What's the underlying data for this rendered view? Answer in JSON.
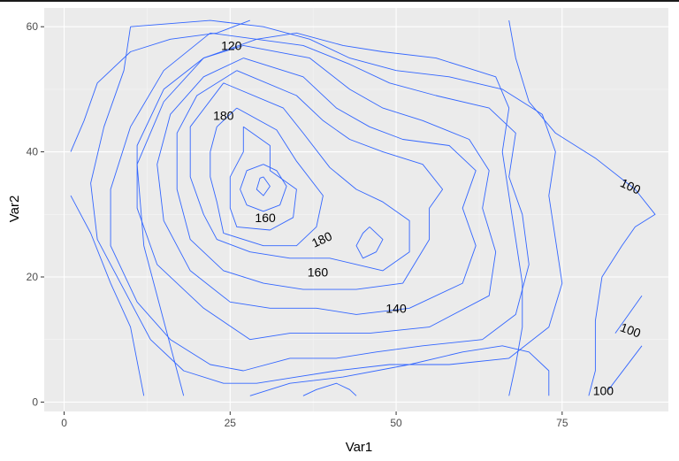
{
  "chart_data": {
    "type": "contour",
    "xlabel": "Var1",
    "ylabel": "Var2",
    "xlim": [
      -3,
      91
    ],
    "ylim": [
      -1.5,
      63
    ],
    "x_ticks": [
      0,
      25,
      50,
      75
    ],
    "y_ticks": [
      0,
      20,
      40,
      60
    ],
    "grid": true,
    "colors": {
      "panel": "#ebebeb",
      "grid_major": "#ffffff",
      "grid_minor": "#f5f5f5",
      "contour": "#3366ff",
      "tick": "#333333"
    },
    "contour_labels": [
      {
        "text": "120",
        "x": 25.2,
        "y": 57.0,
        "angle": 0
      },
      {
        "text": "180",
        "x": 24.0,
        "y": 45.8,
        "angle": 0
      },
      {
        "text": "160",
        "x": 30.3,
        "y": 29.5,
        "angle": 0
      },
      {
        "text": "180",
        "x": 38.8,
        "y": 26.0,
        "angle": -25
      },
      {
        "text": "160",
        "x": 38.2,
        "y": 20.8,
        "angle": 0
      },
      {
        "text": "140",
        "x": 50.0,
        "y": 15.0,
        "angle": 0
      },
      {
        "text": "100",
        "x": 85.3,
        "y": 34.5,
        "angle": 25
      },
      {
        "text": "100",
        "x": 85.3,
        "y": 11.5,
        "angle": 20
      },
      {
        "text": "100",
        "x": 81.2,
        "y": 1.8,
        "angle": 0
      }
    ],
    "contours": [
      [
        [
          30,
          36
        ],
        [
          31,
          34.5
        ],
        [
          30,
          33
        ],
        [
          29,
          34
        ],
        [
          29.5,
          35.8
        ],
        [
          30,
          36
        ]
      ],
      [
        [
          30,
          38
        ],
        [
          32,
          37
        ],
        [
          33.5,
          34.5
        ],
        [
          32.5,
          31.5
        ],
        [
          30,
          30.5
        ],
        [
          27.5,
          31.5
        ],
        [
          26.5,
          34
        ],
        [
          27.5,
          37
        ],
        [
          30,
          38
        ]
      ],
      [
        [
          27,
          44
        ],
        [
          31,
          41
        ],
        [
          31,
          37
        ],
        [
          35,
          34
        ],
        [
          34.5,
          29.5
        ],
        [
          31,
          27.5
        ],
        [
          26,
          28
        ],
        [
          25,
          31
        ],
        [
          25,
          36
        ],
        [
          27,
          40
        ],
        [
          27,
          44
        ]
      ],
      [
        [
          26,
          47
        ],
        [
          32,
          43.5
        ],
        [
          35,
          38.5
        ],
        [
          39,
          33
        ],
        [
          38,
          28
        ],
        [
          35,
          25
        ],
        [
          30,
          25
        ],
        [
          24,
          27
        ],
        [
          23,
          32
        ],
        [
          22,
          36
        ],
        [
          22,
          40
        ],
        [
          23,
          44
        ],
        [
          26,
          47
        ]
      ],
      [
        [
          46,
          28
        ],
        [
          48,
          26
        ],
        [
          47,
          24
        ],
        [
          45,
          23
        ],
        [
          44,
          25
        ],
        [
          45,
          27
        ],
        [
          46,
          28
        ]
      ],
      [
        [
          24,
          51
        ],
        [
          33,
          47
        ],
        [
          36,
          43
        ],
        [
          40,
          37.5
        ],
        [
          44,
          34
        ],
        [
          48,
          32
        ],
        [
          52,
          29
        ],
        [
          52,
          24
        ],
        [
          48,
          21
        ],
        [
          40,
          23
        ],
        [
          34,
          23
        ],
        [
          28,
          24
        ],
        [
          23,
          26
        ],
        [
          21,
          30
        ],
        [
          19,
          36
        ],
        [
          19,
          44
        ],
        [
          24,
          51
        ]
      ],
      [
        [
          26,
          53
        ],
        [
          35,
          49
        ],
        [
          39,
          45
        ],
        [
          43,
          42
        ],
        [
          48,
          40
        ],
        [
          54,
          38
        ],
        [
          57,
          34
        ],
        [
          55,
          31
        ],
        [
          55,
          26
        ],
        [
          51,
          19
        ],
        [
          44,
          18
        ],
        [
          36,
          18
        ],
        [
          30,
          19
        ],
        [
          24,
          21
        ],
        [
          19,
          26
        ],
        [
          17,
          34
        ],
        [
          17,
          43
        ],
        [
          20,
          49
        ],
        [
          26,
          53
        ]
      ],
      [
        [
          27,
          55
        ],
        [
          36,
          52
        ],
        [
          41,
          47
        ],
        [
          46,
          44
        ],
        [
          51,
          42
        ],
        [
          58,
          41
        ],
        [
          62,
          37
        ],
        [
          60,
          31
        ],
        [
          62,
          25
        ],
        [
          60,
          19
        ],
        [
          52,
          15
        ],
        [
          44,
          14
        ],
        [
          38,
          15
        ],
        [
          31,
          15
        ],
        [
          25,
          16
        ],
        [
          19,
          21
        ],
        [
          15,
          29
        ],
        [
          14,
          38
        ],
        [
          16,
          46
        ],
        [
          21,
          52
        ],
        [
          27,
          55
        ]
      ],
      [
        [
          27,
          57
        ],
        [
          37,
          55
        ],
        [
          43,
          50
        ],
        [
          48,
          47
        ],
        [
          54,
          45
        ],
        [
          61,
          42
        ],
        [
          64,
          37
        ],
        [
          63,
          31
        ],
        [
          65,
          24
        ],
        [
          64,
          17
        ],
        [
          55,
          12
        ],
        [
          46,
          11
        ],
        [
          40,
          11
        ],
        [
          34,
          11
        ],
        [
          28,
          10
        ],
        [
          21,
          15
        ],
        [
          14,
          22
        ],
        [
          11,
          31
        ],
        [
          11,
          41
        ],
        [
          15,
          50
        ],
        [
          21,
          55
        ],
        [
          27,
          57
        ]
      ],
      [
        [
          22,
          59
        ],
        [
          36,
          57
        ],
        [
          43,
          54
        ],
        [
          49,
          51
        ],
        [
          56,
          49
        ],
        [
          64,
          47
        ],
        [
          68,
          43
        ],
        [
          67,
          36
        ],
        [
          69,
          30
        ],
        [
          70,
          22
        ],
        [
          68,
          14
        ],
        [
          63,
          10
        ],
        [
          54,
          9
        ],
        [
          47,
          8
        ],
        [
          41,
          7
        ],
        [
          34,
          7
        ],
        [
          27,
          5
        ],
        [
          22,
          6
        ],
        [
          16,
          10
        ],
        [
          11,
          16
        ],
        [
          7,
          25
        ],
        [
          7,
          34
        ],
        [
          10,
          44
        ],
        [
          15,
          53
        ],
        [
          22,
          59
        ]
      ],
      [
        [
          10,
          60
        ],
        [
          22,
          61
        ],
        [
          30,
          60
        ],
        [
          37,
          58
        ],
        [
          43,
          55
        ],
        [
          50,
          53
        ],
        [
          58,
          52
        ],
        [
          66,
          50
        ],
        [
          72,
          46
        ],
        [
          74,
          40
        ],
        [
          73,
          33
        ],
        [
          74,
          26
        ],
        [
          75,
          19
        ],
        [
          73,
          12
        ],
        [
          67,
          7
        ],
        [
          58,
          6
        ],
        [
          49,
          6
        ],
        [
          41,
          5
        ],
        [
          35,
          4
        ],
        [
          29,
          3
        ],
        [
          24,
          3
        ],
        [
          18,
          5
        ],
        [
          13,
          10
        ],
        [
          9,
          18
        ],
        [
          5,
          26
        ],
        [
          4,
          35
        ],
        [
          6,
          44
        ],
        [
          9,
          53
        ],
        [
          10,
          60
        ]
      ],
      [
        [
          1,
          40
        ],
        [
          3,
          45
        ],
        [
          5,
          51
        ],
        [
          10,
          56
        ],
        [
          16,
          58
        ],
        [
          23,
          59
        ],
        [
          28,
          61
        ]
      ],
      [
        [
          1,
          33
        ],
        [
          4,
          27
        ],
        [
          7,
          19
        ],
        [
          10,
          12
        ],
        [
          12,
          1
        ]
      ],
      [
        [
          18,
          1
        ],
        [
          15,
          13
        ],
        [
          12,
          25
        ],
        [
          11,
          38
        ],
        [
          15,
          48
        ],
        [
          21,
          55
        ],
        [
          29,
          58
        ],
        [
          35,
          59
        ],
        [
          42,
          57
        ],
        [
          48,
          56
        ],
        [
          56,
          55
        ],
        [
          62,
          53
        ],
        [
          65,
          52
        ],
        [
          67,
          47
        ],
        [
          66,
          40
        ],
        [
          67,
          33
        ],
        [
          68,
          26
        ],
        [
          69,
          19
        ],
        [
          69,
          12
        ],
        [
          68,
          6
        ],
        [
          67,
          1
        ]
      ],
      [
        [
          28,
          1
        ],
        [
          34,
          3
        ],
        [
          42,
          4
        ],
        [
          52,
          6
        ],
        [
          60,
          8
        ],
        [
          66,
          9
        ],
        [
          70,
          8
        ],
        [
          73,
          5
        ],
        [
          73,
          1
        ]
      ],
      [
        [
          36,
          1
        ],
        [
          38,
          2
        ],
        [
          41,
          3
        ],
        [
          43,
          2
        ],
        [
          44,
          1
        ]
      ],
      [
        [
          67,
          61
        ],
        [
          68,
          55
        ],
        [
          70,
          48
        ],
        [
          74,
          43
        ],
        [
          80,
          39
        ],
        [
          86,
          34
        ],
        [
          89,
          30
        ],
        [
          86,
          28
        ],
        [
          84,
          25
        ],
        [
          81,
          20
        ],
        [
          80,
          13
        ],
        [
          80,
          5
        ],
        [
          79,
          1
        ]
      ],
      [
        [
          83,
          11
        ],
        [
          87,
          17
        ]
      ],
      [
        [
          82,
          2
        ],
        [
          87,
          9
        ]
      ]
    ]
  }
}
